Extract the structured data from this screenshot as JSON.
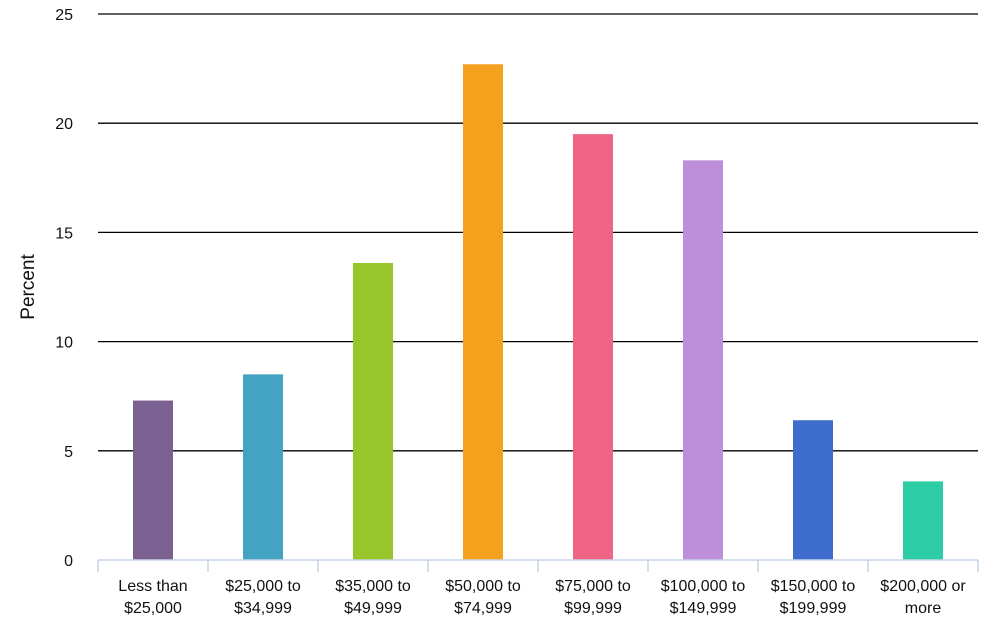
{
  "chart_data": {
    "type": "bar",
    "title": "",
    "xlabel": "",
    "ylabel": "Percent",
    "ylim": [
      0,
      25
    ],
    "yticks": [
      0,
      5,
      10,
      15,
      20,
      25
    ],
    "grid": true,
    "legend": "none",
    "categories": [
      [
        "Less than",
        "$25,000"
      ],
      [
        "$25,000 to",
        "$34,999"
      ],
      [
        "$35,000 to",
        "$49,999"
      ],
      [
        "$50,000 to",
        "$74,999"
      ],
      [
        "$75,000 to",
        "$99,999"
      ],
      [
        "$100,000 to",
        "$149,999"
      ],
      [
        "$150,000 to",
        "$199,999"
      ],
      [
        "$200,000 or",
        "more"
      ]
    ],
    "values": [
      7.3,
      8.5,
      13.6,
      22.7,
      19.5,
      18.3,
      6.4,
      3.6
    ],
    "colors": [
      "#7b6191",
      "#44a3c3",
      "#97c62c",
      "#f4a21d",
      "#ef6485",
      "#bd8fda",
      "#3f6dcd",
      "#2ccda4"
    ]
  }
}
